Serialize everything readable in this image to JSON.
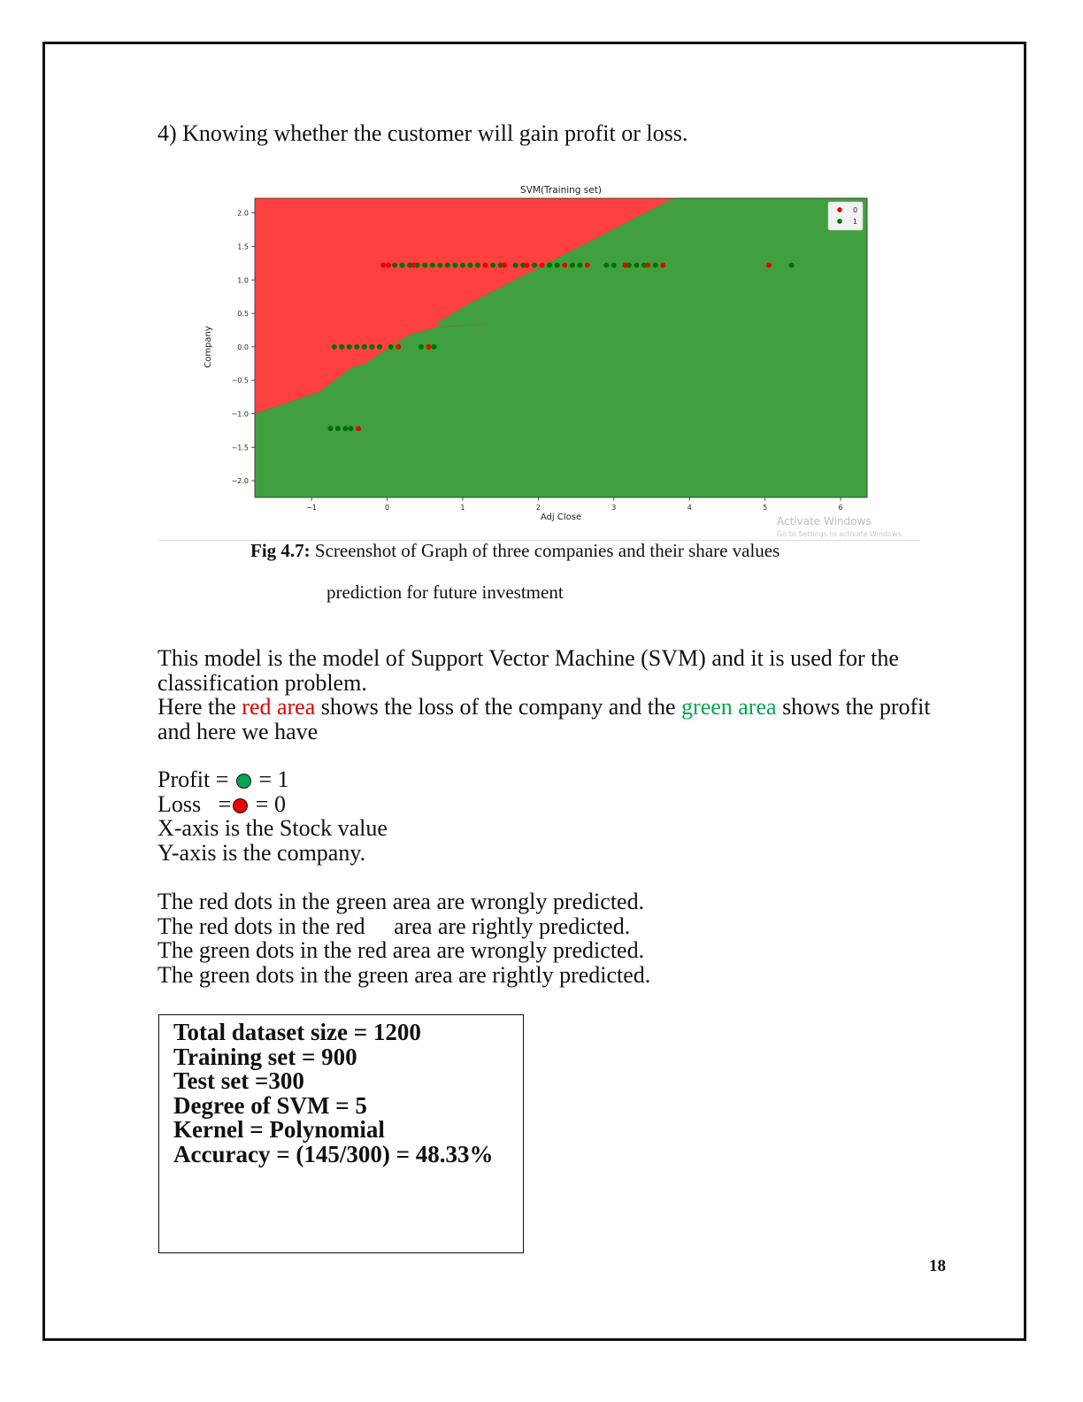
{
  "heading": "4) Knowing whether the customer will gain profit or loss.",
  "chart_data": {
    "type": "scatter",
    "title": "SVM(Training set)",
    "xlabel": "Adj Close",
    "ylabel": "Company",
    "xlim": [
      -1.75,
      6.35
    ],
    "ylim": [
      -2.25,
      2.22
    ],
    "xticks": [
      -1,
      0,
      1,
      2,
      3,
      4,
      5,
      6
    ],
    "yticks": [
      2.0,
      1.5,
      1.0,
      0.5,
      0.0,
      -0.5,
      -1.0,
      -1.5,
      -2.0
    ],
    "xtick_labels": [
      "−1",
      "0",
      "1",
      "2",
      "3",
      "4",
      "5",
      "6"
    ],
    "ytick_labels": [
      "2.0",
      "1.5",
      "1.0",
      "0.5",
      "0.0",
      "−0.5",
      "−1.0",
      "−1.5",
      "−2.0"
    ],
    "legend": {
      "placement": "top-right",
      "entries": [
        "0",
        "1"
      ]
    },
    "colors": {
      "region_0": "#ff4040",
      "region_1": "#40a040",
      "class_0": "#ee0000",
      "class_1": "#007000"
    },
    "decision_boundary": [
      [
        -1.75,
        -1.0
      ],
      [
        -0.9,
        -0.68
      ],
      [
        -0.45,
        -0.3
      ],
      [
        -0.3,
        -0.27
      ],
      [
        -0.15,
        -0.15
      ],
      [
        0.3,
        0.18
      ],
      [
        0.7,
        0.3
      ],
      [
        1.3,
        0.34
      ],
      [
        0.7,
        0.29
      ],
      [
        0.67,
        0.36
      ],
      [
        1.1,
        0.65
      ],
      [
        2.3,
        1.35
      ],
      [
        3.8,
        2.22
      ]
    ],
    "series": [
      {
        "name": "0",
        "points": [
          [
            -0.05,
            1.22
          ],
          [
            0.02,
            1.22
          ],
          [
            0.35,
            1.22
          ],
          [
            1.3,
            1.22
          ],
          [
            1.55,
            1.22
          ],
          [
            1.85,
            1.22
          ],
          [
            2.05,
            1.22
          ],
          [
            2.35,
            1.22
          ],
          [
            2.65,
            1.22
          ],
          [
            3.15,
            1.22
          ],
          [
            3.45,
            1.22
          ],
          [
            3.65,
            1.22
          ],
          [
            5.05,
            1.22
          ],
          [
            0.15,
            0.0
          ],
          [
            0.55,
            0.0
          ],
          [
            -0.38,
            -1.22
          ]
        ]
      },
      {
        "name": "1",
        "points": [
          [
            0.1,
            1.22
          ],
          [
            0.2,
            1.22
          ],
          [
            0.3,
            1.22
          ],
          [
            0.4,
            1.22
          ],
          [
            0.5,
            1.22
          ],
          [
            0.6,
            1.22
          ],
          [
            0.7,
            1.22
          ],
          [
            0.8,
            1.22
          ],
          [
            0.9,
            1.22
          ],
          [
            1.0,
            1.22
          ],
          [
            1.1,
            1.22
          ],
          [
            1.2,
            1.22
          ],
          [
            1.4,
            1.22
          ],
          [
            1.5,
            1.22
          ],
          [
            1.7,
            1.22
          ],
          [
            1.8,
            1.22
          ],
          [
            1.95,
            1.22
          ],
          [
            2.15,
            1.22
          ],
          [
            2.25,
            1.22
          ],
          [
            2.45,
            1.22
          ],
          [
            2.55,
            1.22
          ],
          [
            2.9,
            1.22
          ],
          [
            3.0,
            1.22
          ],
          [
            3.2,
            1.22
          ],
          [
            3.3,
            1.22
          ],
          [
            3.4,
            1.22
          ],
          [
            3.55,
            1.22
          ],
          [
            5.35,
            1.22
          ],
          [
            -0.7,
            0.0
          ],
          [
            -0.6,
            0.0
          ],
          [
            -0.5,
            0.0
          ],
          [
            -0.4,
            0.0
          ],
          [
            -0.3,
            0.0
          ],
          [
            -0.2,
            0.0
          ],
          [
            -0.1,
            0.0
          ],
          [
            0.05,
            0.0
          ],
          [
            0.45,
            0.0
          ],
          [
            0.62,
            0.0
          ],
          [
            -0.75,
            -1.22
          ],
          [
            -0.65,
            -1.22
          ],
          [
            -0.55,
            -1.22
          ],
          [
            -0.48,
            -1.22
          ]
        ]
      }
    ]
  },
  "watermark": {
    "title": "Activate Windows",
    "subtitle": "Go to Settings to activate Windows."
  },
  "caption": {
    "label": "Fig 4.7:",
    "line1": " Screenshot of Graph of three companies and their share values",
    "line2": "prediction for future investment"
  },
  "paragraph1": {
    "line1": "This model is the model of Support Vector Machine (SVM) and it is used for the classification problem.",
    "seg1": "Here the ",
    "red_area": "red area",
    "seg2": " shows the loss of the company and the ",
    "green_area": "green area",
    "seg3": " shows the profit and here we have"
  },
  "legend_text": {
    "profit_label": "Profit =",
    "profit_value": "= 1",
    "loss_label": "Loss   =",
    "loss_value": "= 0",
    "x_axis": "X-axis is the Stock value",
    "y_axis": "Y-axis is the company."
  },
  "predictions": [
    "The red dots in the green area are wrongly predicted.",
    "The red dots in the red     area are rightly predicted.",
    "The green dots in the red area are wrongly predicted.",
    "The green dots in the green area are rightly predicted."
  ],
  "stats": [
    "Total dataset size = 1200",
    "Training set = 900",
    "Test set =300",
    "Degree of SVM = 5",
    "Kernel = Polynomial",
    "Accuracy = (145/300) = 48.33%"
  ],
  "page_number": "18"
}
